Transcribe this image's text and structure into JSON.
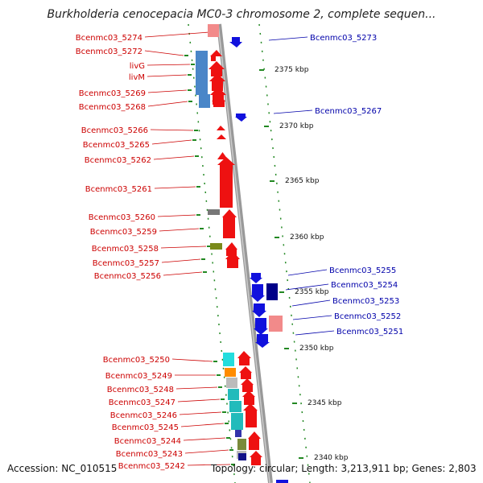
{
  "title": "Burkholderia cenocepacia MC0-3 chromosome 2, complete sequen...",
  "footer": {
    "accession": "Accession: NC_010515",
    "topology": "Topology: circular; Length: 3,213,911 bp; Genes: 2,803"
  },
  "colors": {
    "forward_strand": "#ee1111",
    "reverse_strand": "#1111dd",
    "backbone": "#999999",
    "left_label": "#cc0000",
    "right_label": "#0000aa",
    "tick_mark": "#228822"
  },
  "ticks": [
    {
      "label": "2375 kbp"
    },
    {
      "label": "2370 kbp"
    },
    {
      "label": "2365 kbp"
    },
    {
      "label": "2360 kbp"
    },
    {
      "label": "2355 kbp"
    },
    {
      "label": "2350 kbp"
    },
    {
      "label": "2345 kbp"
    },
    {
      "label": "2340 kbp"
    }
  ],
  "left_labels": [
    {
      "text": "Bcenmc03_5274"
    },
    {
      "text": "Bcenmc03_5272"
    },
    {
      "text": "livG"
    },
    {
      "text": "livM"
    },
    {
      "text": "Bcenmc03_5269"
    },
    {
      "text": "Bcenmc03_5268"
    },
    {
      "text": "Bcenmc03_5266"
    },
    {
      "text": "Bcenmc03_5265"
    },
    {
      "text": "Bcenmc03_5262"
    },
    {
      "text": "Bcenmc03_5261"
    },
    {
      "text": "Bcenmc03_5260"
    },
    {
      "text": "Bcenmc03_5259"
    },
    {
      "text": "Bcenmc03_5258"
    },
    {
      "text": "Bcenmc03_5257"
    },
    {
      "text": "Bcenmc03_5256"
    },
    {
      "text": "Bcenmc03_5250"
    },
    {
      "text": "Bcenmc03_5249"
    },
    {
      "text": "Bcenmc03_5248"
    },
    {
      "text": "Bcenmc03_5247"
    },
    {
      "text": "Bcenmc03_5246"
    },
    {
      "text": "Bcenmc03_5245"
    },
    {
      "text": "Bcenmc03_5244"
    },
    {
      "text": "Bcenmc03_5243"
    },
    {
      "text": "Bcenmc03_5242"
    }
  ],
  "right_labels": [
    {
      "text": "Bcenmc03_5273"
    },
    {
      "text": "Bcenmc03_5267"
    },
    {
      "text": "Bcenmc03_5255"
    },
    {
      "text": "Bcenmc03_5254"
    },
    {
      "text": "Bcenmc03_5253"
    },
    {
      "text": "Bcenmc03_5252"
    },
    {
      "text": "Bcenmc03_5251"
    }
  ]
}
